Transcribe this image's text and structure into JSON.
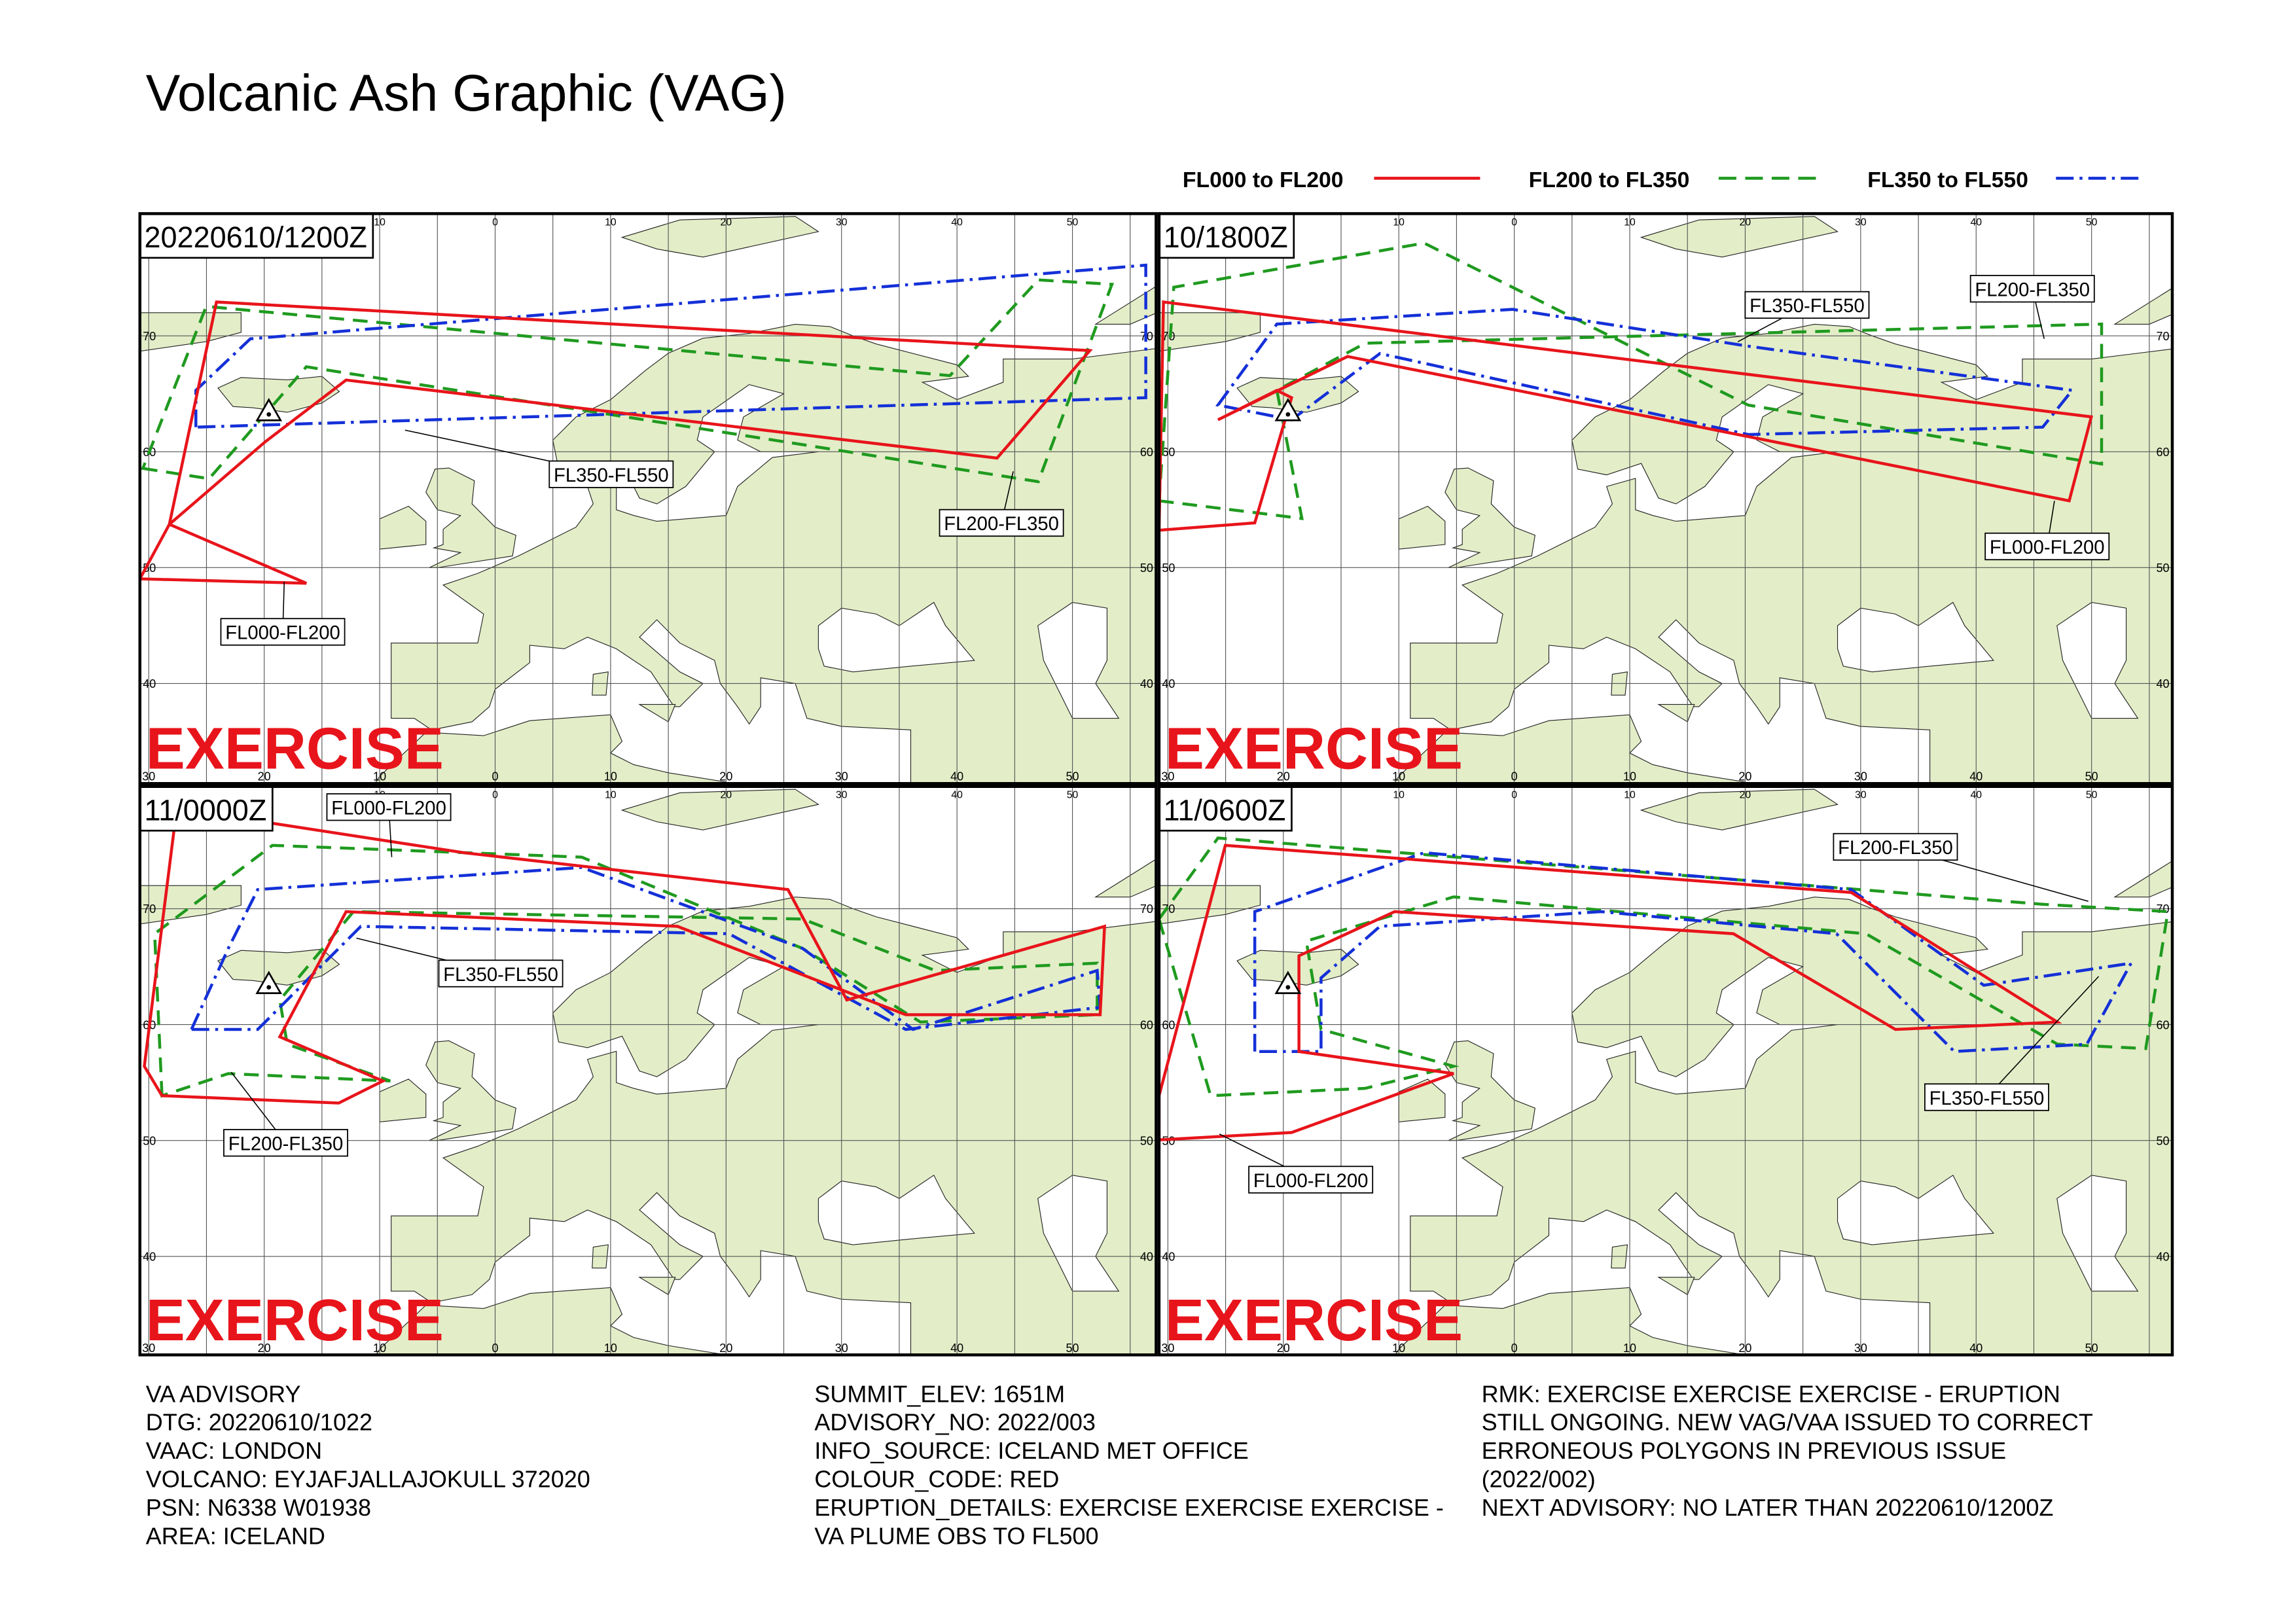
{
  "title": "Volcanic Ash Graphic (VAG)",
  "legend": [
    {
      "label": "FL000 to FL200",
      "color": "#e8141b",
      "style": "solid"
    },
    {
      "label": "FL200 to FL350",
      "color": "#1f9a1f",
      "style": "dashed"
    },
    {
      "label": "FL350 to FL550",
      "color": "#1430d8",
      "style": "dashdot"
    }
  ],
  "grid": {
    "lon_labels": [
      "30",
      "20",
      "10",
      "0",
      "10",
      "20",
      "30",
      "40",
      "50"
    ],
    "lat_labels": [
      "70",
      "60",
      "50",
      "40"
    ]
  },
  "panels": [
    {
      "time": "20220610/1200Z",
      "watermark": "EXERCISE",
      "labels": [
        "FL350-FL550",
        "FL200-FL350",
        "FL000-FL200"
      ]
    },
    {
      "time": "10/1800Z",
      "watermark": "EXERCISE",
      "labels": [
        "FL350-FL550",
        "FL200-FL350",
        "FL000-FL200"
      ]
    },
    {
      "time": "11/0000Z",
      "watermark": "EXERCISE",
      "labels": [
        "FL000-FL200",
        "FL350-FL550",
        "FL200-FL350"
      ]
    },
    {
      "time": "11/0600Z",
      "watermark": "EXERCISE",
      "labels": [
        "FL200-FL350",
        "FL350-FL550",
        "FL000-FL200"
      ]
    }
  ],
  "advisory": {
    "columns": [
      [
        "VA ADVISORY",
        "DTG: 20220610/1022",
        "VAAC: LONDON",
        "VOLCANO: EYJAFJALLAJOKULL 372020",
        "PSN: N6338 W01938",
        "AREA: ICELAND"
      ],
      [
        "SUMMIT_ELEV: 1651M",
        "ADVISORY_NO: 2022/003",
        "INFO_SOURCE: ICELAND MET OFFICE",
        "COLOUR_CODE: RED",
        "ERUPTION_DETAILS: EXERCISE EXERCISE EXERCISE -",
        "VA PLUME OBS TO FL500"
      ],
      [
        "RMK: EXERCISE EXERCISE EXERCISE - ERUPTION",
        "STILL ONGOING. NEW VAG/VAA ISSUED TO CORRECT",
        "ERRONEOUS POLYGONS IN PREVIOUS ISSUE",
        "(2022/002)",
        "NEXT ADVISORY: NO LATER THAN 20220610/1200Z"
      ]
    ]
  }
}
